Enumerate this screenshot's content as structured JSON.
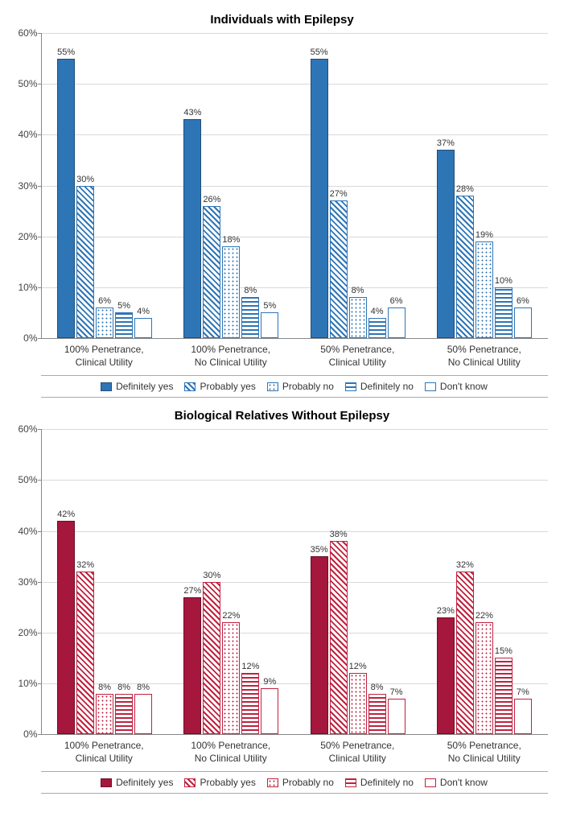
{
  "chart1": {
    "title": "Individuals with Epilepsy",
    "type": "bar",
    "ymax": 60,
    "yticks": [
      0,
      10,
      20,
      30,
      40,
      50,
      60
    ],
    "ytick_labels": [
      "0%",
      "10%",
      "20%",
      "30%",
      "40%",
      "50%",
      "60%"
    ],
    "categories": [
      "100% Penetrance,\nClinical Utility",
      "100% Penetrance,\nNo Clinical Utility",
      "50% Penetrance,\nClinical Utility",
      "50% Penetrance,\nNo Clinical Utility"
    ],
    "series": [
      "Definitely yes",
      "Probably yes",
      "Probably no",
      "Definitely no",
      "Don't know"
    ],
    "series_fill": [
      "fill-solid-blue",
      "fill-diag-blue",
      "fill-dots-blue",
      "fill-hstripe-blue",
      "fill-white-blue"
    ],
    "values": [
      [
        55,
        30,
        6,
        5,
        4
      ],
      [
        43,
        26,
        18,
        8,
        5
      ],
      [
        55,
        27,
        8,
        4,
        6
      ],
      [
        37,
        28,
        19,
        10,
        6
      ]
    ],
    "title_fontsize": 15,
    "label_fontsize": 11,
    "base_color": "#2e75b6",
    "background_color": "#ffffff",
    "grid_color": "#d9d9d9"
  },
  "chart2": {
    "title": "Biological Relatives Without Epilepsy",
    "type": "bar",
    "ymax": 60,
    "yticks": [
      0,
      10,
      20,
      30,
      40,
      50,
      60
    ],
    "ytick_labels": [
      "0%",
      "10%",
      "20%",
      "30%",
      "40%",
      "50%",
      "60%"
    ],
    "categories": [
      "100% Penetrance,\nClinical Utility",
      "100% Penetrance,\nNo Clinical Utility",
      "50% Penetrance,\nClinical Utility",
      "50% Penetrance,\nNo Clinical Utility"
    ],
    "series": [
      "Definitely yes",
      "Probably yes",
      "Probably no",
      "Definitely no",
      "Don't know"
    ],
    "series_fill": [
      "fill-solid-red",
      "fill-diag-red",
      "fill-dots-red",
      "fill-hstripe-red",
      "fill-white-red"
    ],
    "values": [
      [
        42,
        32,
        8,
        8,
        8
      ],
      [
        27,
        30,
        22,
        12,
        9
      ],
      [
        35,
        38,
        12,
        8,
        7
      ],
      [
        23,
        32,
        22,
        15,
        7
      ]
    ],
    "title_fontsize": 15,
    "label_fontsize": 11,
    "base_color": "#a5173d",
    "background_color": "#ffffff",
    "grid_color": "#d9d9d9"
  }
}
